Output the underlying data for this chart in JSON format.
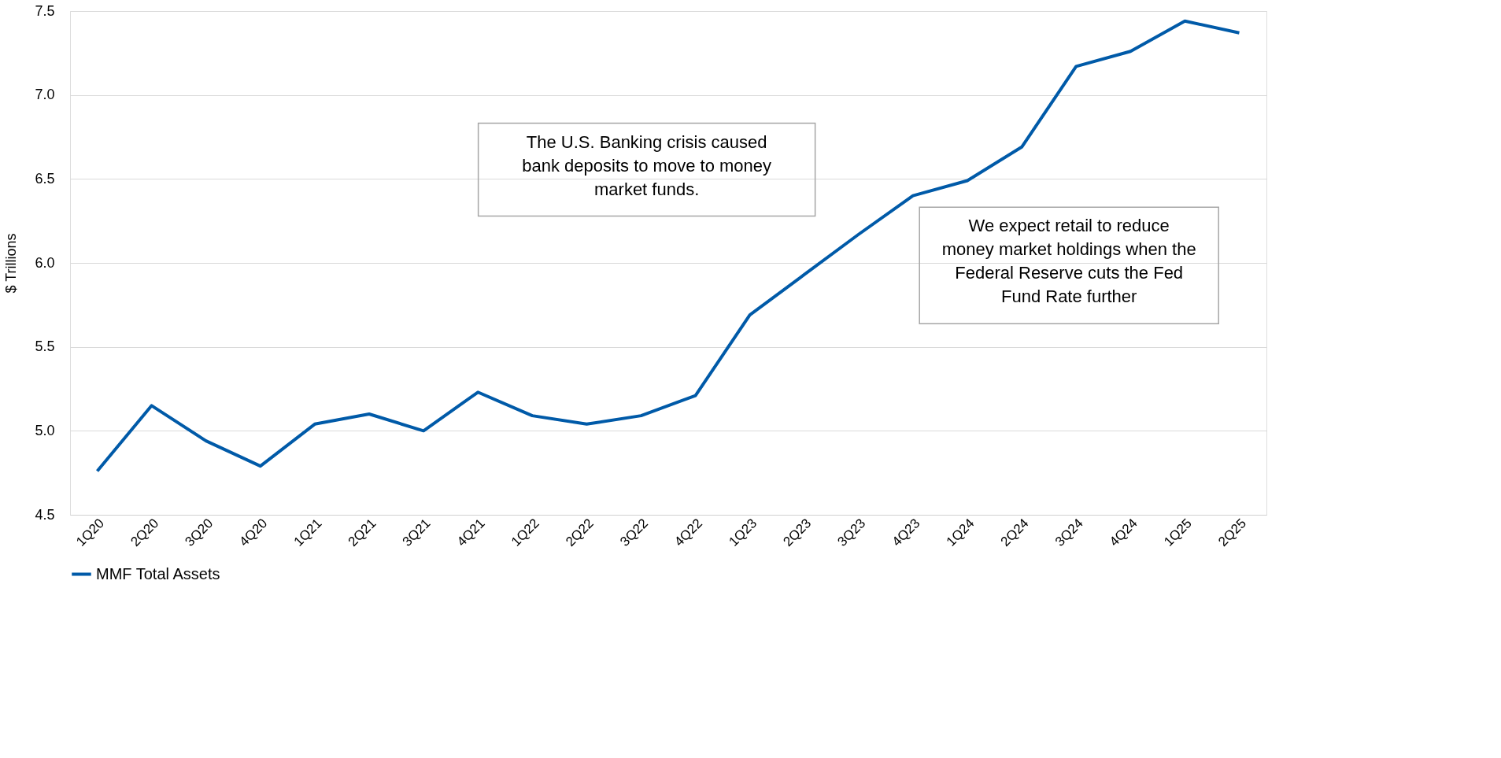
{
  "chart_data": {
    "type": "line",
    "ylabel": "$ Trillions",
    "categories": [
      "1Q20",
      "2Q20",
      "3Q20",
      "4Q20",
      "1Q21",
      "2Q21",
      "3Q21",
      "4Q21",
      "1Q22",
      "2Q22",
      "3Q22",
      "4Q22",
      "1Q23",
      "2Q23",
      "3Q23",
      "4Q23",
      "1Q24",
      "2Q24",
      "3Q24",
      "4Q24",
      "1Q25",
      "2Q25"
    ],
    "series": [
      {
        "name": "MMF Total Assets",
        "color": "#005aa8",
        "values": [
          4.76,
          5.15,
          4.94,
          4.79,
          5.04,
          5.1,
          5.0,
          5.23,
          5.09,
          5.04,
          5.09,
          5.21,
          5.69,
          5.93,
          6.17,
          6.4,
          6.49,
          6.69,
          7.17,
          7.26,
          7.44,
          7.37
        ]
      }
    ],
    "ylim": [
      4.5,
      7.5
    ],
    "yticks": [
      {
        "value": 4.5,
        "label": "4.5"
      },
      {
        "value": 5.0,
        "label": "5.0"
      },
      {
        "value": 5.5,
        "label": "5.5"
      },
      {
        "value": 6.0,
        "label": "6.0"
      },
      {
        "value": 6.5,
        "label": "6.5"
      },
      {
        "value": 7.0,
        "label": "7.0"
      },
      {
        "value": 7.5,
        "label": "7.5"
      }
    ],
    "grid": "y",
    "legend": "bottom",
    "marker": "none",
    "line_style": "solid",
    "annotations": [
      "The U.S. Banking crisis caused bank deposits to move to money market funds.",
      "We expect retail to reduce money market holdings when the Federal Reserve cuts the Fed Fund Rate further"
    ]
  }
}
